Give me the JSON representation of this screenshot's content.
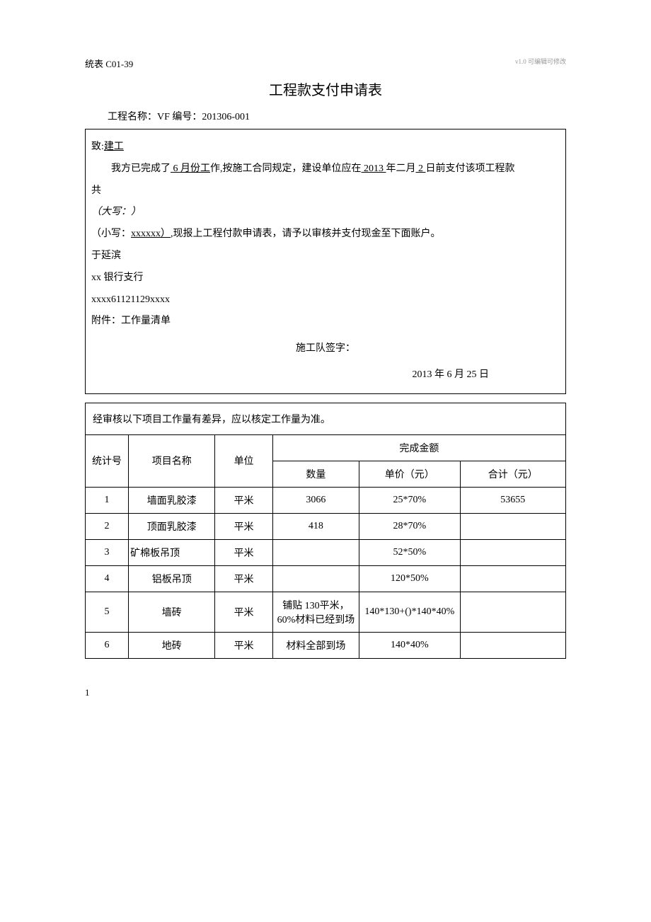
{
  "watermark": "v1.0 可编辑可修改",
  "form_code": "统表 C01-39",
  "title": "工程款支付申请表",
  "project_line": "工程名称：VF 编号：201306-001",
  "letter": {
    "to_prefix": "致:",
    "to_name": "建工",
    "p1_a": "我方已完成了",
    "p1_u1": " 6 月份工",
    "p1_b": "作,按施工合同规定，建设单位应在",
    "p1_u2": " 2013 ",
    "p1_c": "年二月",
    "p1_u3": " 2 ",
    "p1_d": "日前支付该项工程款",
    "gong": "共",
    "daxie": "（大写：）",
    "xiaoxie_a": "（小写：",
    "xiaoxie_u": "xxxxxx）",
    "xiaoxie_b": ",现报上工程付款申请表，请予以审核并支付现金至下面账户。",
    "name": "于延滨",
    "bank": "xx 银行支行",
    "account": "xxxx61121129xxxx",
    "attachment": "附件：工作量清单",
    "sign_label": "施工队签字：",
    "date": "2013 年 6 月 25 日"
  },
  "table": {
    "note": "经审核以下项目工作量有差异，应以核定工作量为准。",
    "headers": {
      "stat": "统计号",
      "name": "项目名称",
      "unit": "单位",
      "amount_group": "完成金额",
      "qty": "数量",
      "price": "单价（元）",
      "total": "合计（元）"
    },
    "rows": [
      {
        "n": "1",
        "name": "墙面乳胶漆",
        "unit": "平米",
        "qty": "3066",
        "price": "25*70%",
        "total": "53655",
        "name_align": "center"
      },
      {
        "n": "2",
        "name": "顶面乳胶漆",
        "unit": "平米",
        "qty": "418",
        "price": "28*70%",
        "total": "",
        "name_align": "center"
      },
      {
        "n": "3",
        "name": "矿棉板吊顶",
        "unit": "平米",
        "qty": "",
        "price": "52*50%",
        "total": "",
        "name_align": "left"
      },
      {
        "n": "4",
        "name": "铝板吊顶",
        "unit": "平米",
        "qty": "",
        "price": "120*50%",
        "total": "",
        "name_align": "center"
      },
      {
        "n": "5",
        "name": "墙砖",
        "unit": "平米",
        "qty": "铺贴 130平米，60%材料已经到场",
        "price": "140*130+()*140*40%",
        "total": "",
        "name_align": "center"
      },
      {
        "n": "6",
        "name": "地砖",
        "unit": "平米",
        "qty": "材料全部到场",
        "price": "140*40%",
        "total": "",
        "name_align": "center"
      }
    ]
  },
  "page_num": "1"
}
